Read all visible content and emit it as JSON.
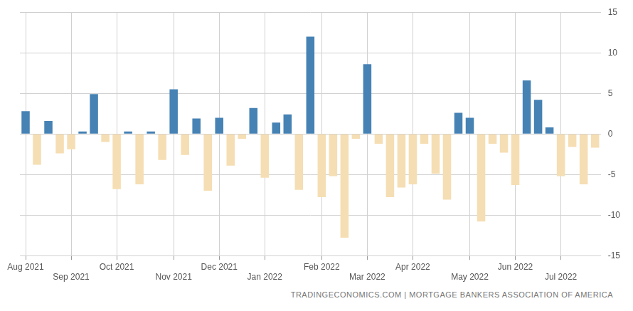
{
  "chart_data": {
    "type": "bar",
    "source": "TRADINGECONOMICS.COM | MORTGAGE BANKERS ASSOCIATION OF AMERICA",
    "categories": [
      "Aug 2021",
      null,
      null,
      null,
      "Sep 2021",
      null,
      null,
      null,
      "Oct 2021",
      null,
      null,
      null,
      null,
      "Nov 2021",
      null,
      null,
      null,
      "Dec 2021",
      null,
      null,
      null,
      "Jan 2022",
      null,
      null,
      null,
      null,
      "Feb 2022",
      null,
      null,
      null,
      "Mar 2022",
      null,
      null,
      null,
      "Apr 2022",
      null,
      null,
      null,
      null,
      "May 2022",
      null,
      null,
      null,
      "Jun 2022",
      null,
      null,
      null,
      "Jul 2022",
      null,
      null,
      null
    ],
    "values": [
      2.8,
      -3.8,
      1.6,
      -2.4,
      -1.9,
      0.3,
      4.9,
      -1.0,
      -6.8,
      0.3,
      -6.2,
      0.3,
      -3.2,
      5.5,
      -2.6,
      1.9,
      -7.0,
      2.0,
      -3.9,
      -0.6,
      3.2,
      -5.4,
      1.4,
      2.4,
      -6.9,
      12.0,
      -7.8,
      -5.2,
      -12.8,
      -0.6,
      8.6,
      -1.2,
      -7.8,
      -6.6,
      -6.2,
      -1.2,
      -4.9,
      -8.1,
      2.6,
      2.0,
      -10.8,
      -1.2,
      -2.3,
      -6.3,
      6.6,
      4.2,
      0.8,
      -5.2,
      -1.6,
      -6.2,
      -1.7
    ],
    "colors": [
      "#4682b4",
      "#f5deb3",
      "#4682b4",
      "#f5deb3",
      "#f5deb3",
      "#4682b4",
      "#4682b4",
      "#f5deb3",
      "#f5deb3",
      "#4682b4",
      "#f5deb3",
      "#4682b4",
      "#f5deb3",
      "#4682b4",
      "#f5deb3",
      "#4682b4",
      "#f5deb3",
      "#4682b4",
      "#f5deb3",
      "#f5deb3",
      "#4682b4",
      "#f5deb3",
      "#4682b4",
      "#4682b4",
      "#f5deb3",
      "#4682b4",
      "#f5deb3",
      "#f5deb3",
      "#f5deb3",
      "#f5deb3",
      "#4682b4",
      "#f5deb3",
      "#f5deb3",
      "#f5deb3",
      "#f5deb3",
      "#f5deb3",
      "#f5deb3",
      "#f5deb3",
      "#4682b4",
      "#4682b4",
      "#f5deb3",
      "#f5deb3",
      "#f5deb3",
      "#f5deb3",
      "#4682b4",
      "#4682b4",
      "#4682b4",
      "#f5deb3",
      "#f5deb3",
      "#f5deb3",
      "#f5deb3"
    ],
    "ylim": [
      -15,
      15
    ],
    "yticks": [
      -15,
      -10,
      -5,
      0,
      5,
      10,
      15
    ],
    "grid": true
  }
}
